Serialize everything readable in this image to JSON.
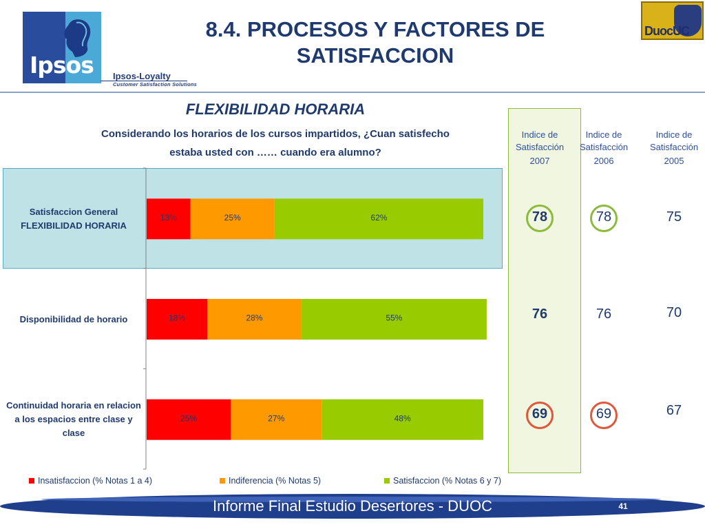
{
  "header": {
    "title": "8.4. PROCESOS Y FACTORES DE SATISFACCION",
    "ipsos_logo_text": "Ipsos",
    "ipsos_loyalty": "Ipsos-Loyalty",
    "ipsos_loyalty_tagline": "Customer Satisfaction Solutions",
    "duoc_logo_text": "DuocUC"
  },
  "section": {
    "title": "FLEXIBILIDAD HORARIA",
    "question_line1": "Considerando los horarios de los cursos impartidos, ¿Cuan satisfecho",
    "question_line2": "estaba usted con …… cuando era alumno?"
  },
  "chart_data": {
    "type": "bar",
    "orientation": "horizontal",
    "stacked": true,
    "categories": [
      "Satisfaccion General FLEXIBILIDAD HORARIA",
      "Disponibilidad de horario",
      "Continuidad horaria en relacion a los espacios entre clase y clase"
    ],
    "series": [
      {
        "name": "Insatisfaccion (% Notas 1 a 4)",
        "color": "#ff0000",
        "values": [
          13,
          18,
          25
        ],
        "labels": [
          "13%",
          "18%",
          "25%"
        ]
      },
      {
        "name": "Indiferencia (% Notas 5)",
        "color": "#ff9900",
        "values": [
          25,
          28,
          27
        ],
        "labels": [
          "25%",
          "28%",
          "27%"
        ]
      },
      {
        "name": "Satisfaccion (% Notas 6 y 7)",
        "color": "#99cc00",
        "values": [
          62,
          55,
          48
        ],
        "labels": [
          "62%",
          "55%",
          "48%"
        ]
      }
    ],
    "xlim": [
      0,
      100
    ],
    "legend_position": "bottom",
    "highlighted_category": 0
  },
  "index_table": {
    "columns": [
      {
        "head1": "Indice de",
        "head2": "Satisfacción",
        "year": "2007",
        "values": [
          "78",
          "76",
          "69"
        ],
        "bold": true,
        "highlighted": true
      },
      {
        "head1": "Indice de",
        "head2": "Satisfacción",
        "year": "2006",
        "values": [
          "78",
          "76",
          "69"
        ],
        "bold": false,
        "highlighted": false
      },
      {
        "head1": "Indice de",
        "head2": "Satisfacción",
        "year": "2005",
        "values": [
          "75",
          "70",
          "67"
        ],
        "bold": false,
        "highlighted": false
      }
    ],
    "ring_colors": {
      "green": "#8cbb3c",
      "red": "#e0573a"
    }
  },
  "footer": {
    "text": "Informe Final Estudio Desertores - DUOC",
    "page": "41"
  }
}
